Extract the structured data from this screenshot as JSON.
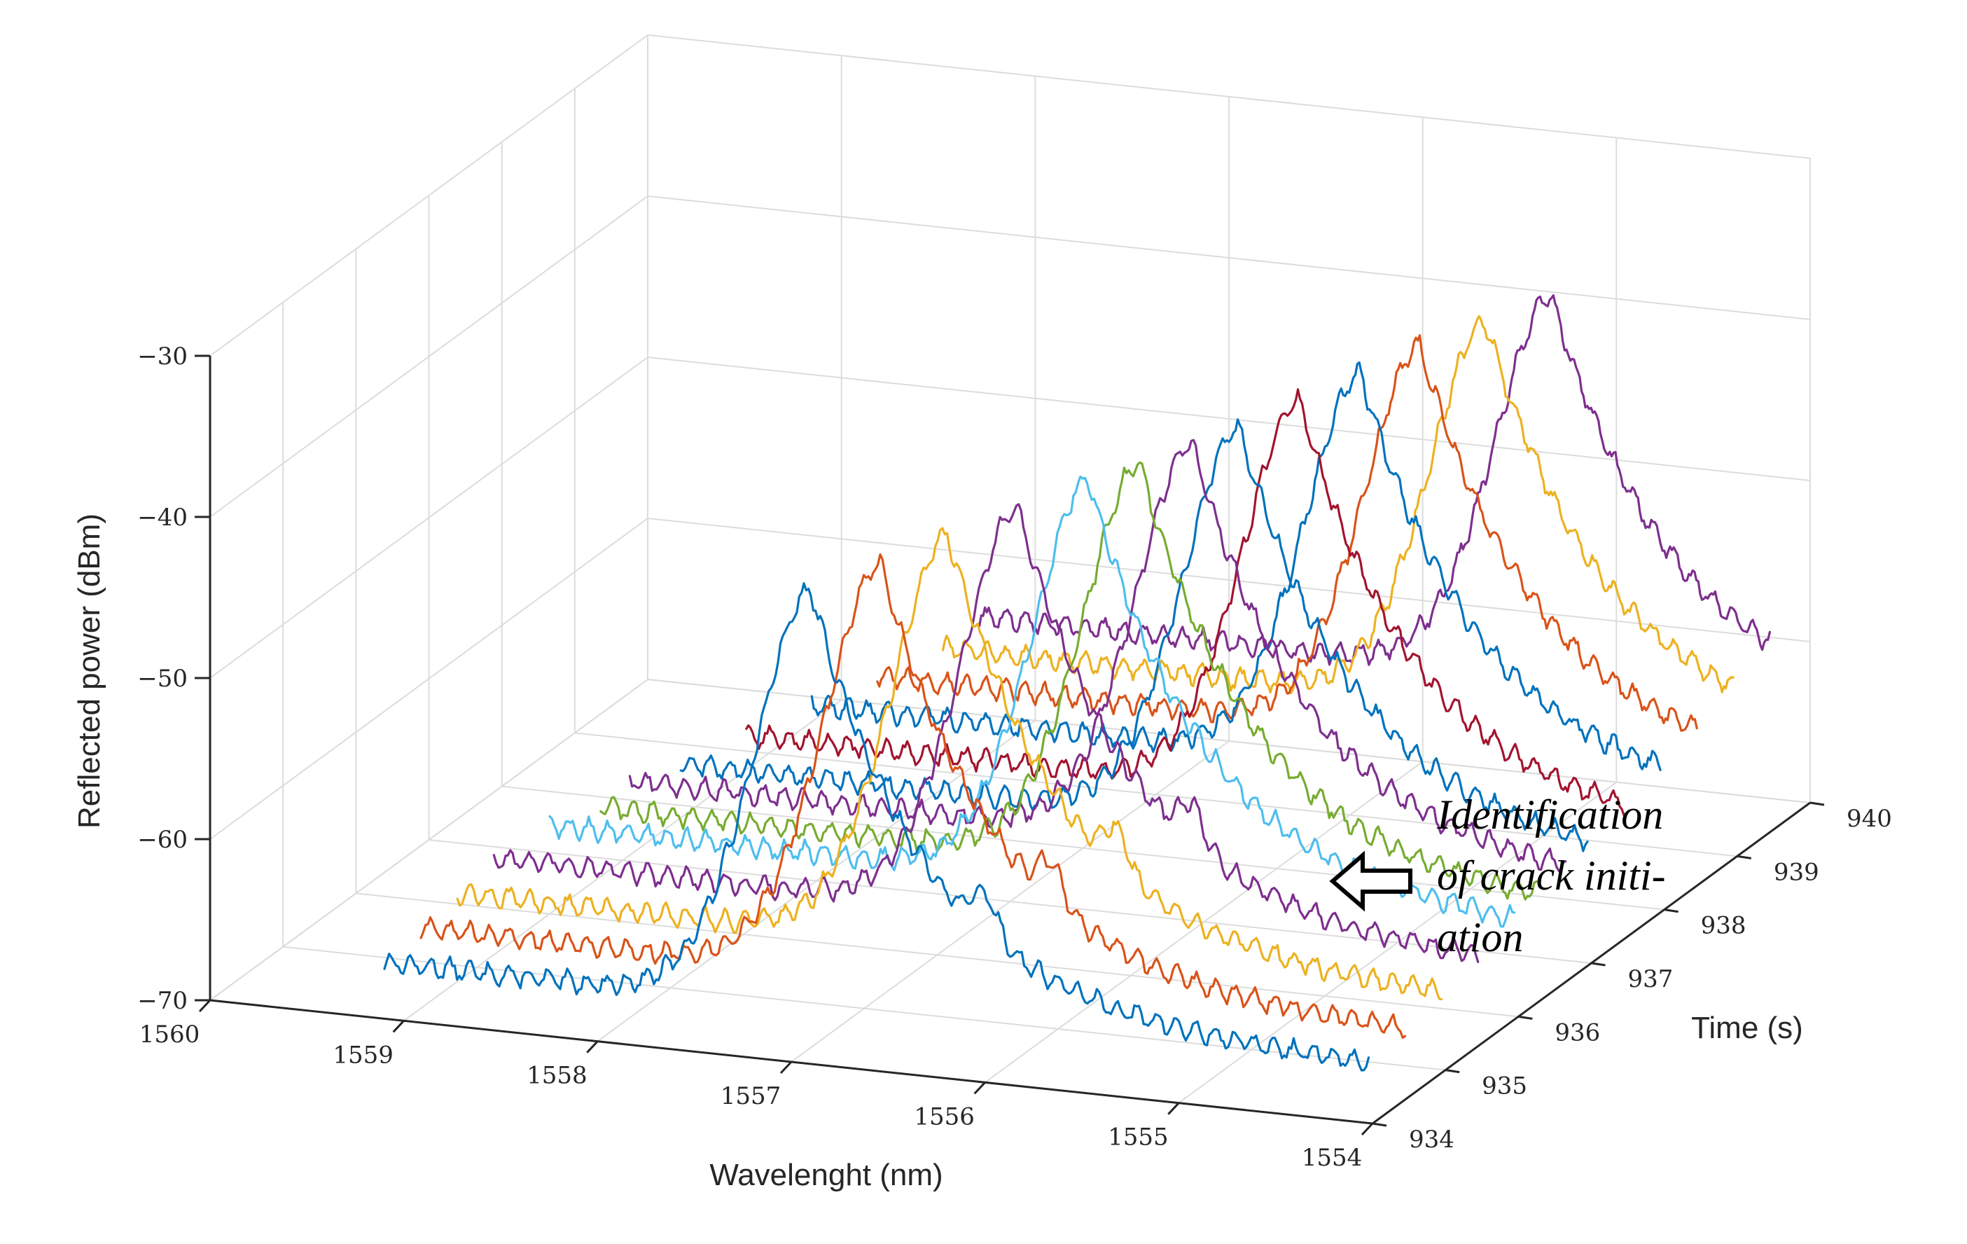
{
  "chart_data": {
    "type": "line",
    "view": "3d-waterfall",
    "title": "",
    "xlabel": "Wavelenght (nm)",
    "ylabel": "Time (s)",
    "zlabel": "Reflected power (dBm)",
    "xlim": [
      1554,
      1560
    ],
    "xdir": "reverse",
    "ylim": [
      934,
      940
    ],
    "zlim": [
      -70,
      -30
    ],
    "xticks": [
      "1554",
      "1555",
      "1556",
      "1557",
      "1558",
      "1559",
      "1560"
    ],
    "yticks": [
      "934",
      "935",
      "936",
      "937",
      "938",
      "939",
      "940"
    ],
    "zticks": [
      "−70",
      "−60",
      "−50",
      "−40",
      "−30"
    ],
    "grid": true,
    "legend": "none",
    "annotation": {
      "lines": [
        "Identification",
        "of crack initi-",
        "ation"
      ],
      "arrow_target_time": 936.5
    },
    "series": [
      {
        "time": 934.0,
        "color": "#0072BD",
        "base_dbm": -66.5,
        "left_offset": 0.0,
        "peak_nm": 1556.9,
        "peak_dbm": -40.6,
        "right_floor_dbm": -66.4,
        "secondary_peak_nm": 1556.0
      },
      {
        "time": 934.5,
        "color": "#D95319",
        "base_dbm": -66.0,
        "left_offset": 0.0,
        "peak_nm": 1556.73,
        "peak_dbm": -40.3,
        "right_floor_dbm": -66.0,
        "secondary_peak_nm": 1555.85
      },
      {
        "time": 935.0,
        "color": "#EDB120",
        "base_dbm": -65.5,
        "left_offset": 0.0,
        "peak_nm": 1556.57,
        "peak_dbm": -40.0,
        "right_floor_dbm": -65.5,
        "secondary_peak_nm": 1555.7
      },
      {
        "time": 935.5,
        "color": "#7E2F8E",
        "base_dbm": -65.0,
        "left_offset": 0.0,
        "peak_nm": 1556.4,
        "peak_dbm": -39.8,
        "right_floor_dbm": -65.0,
        "secondary_peak_nm": 1555.5
      },
      {
        "time": 936.0,
        "color": "#4DBEEE",
        "base_dbm": -64.5,
        "left_offset": 0.1,
        "peak_nm": 1556.22,
        "peak_dbm": -39.5,
        "right_floor_dbm": -64.5
      },
      {
        "time": 936.3,
        "color": "#77AC30",
        "base_dbm": -64.2,
        "left_offset": 0.25,
        "peak_nm": 1556.07,
        "peak_dbm": -39.3,
        "right_floor_dbm": -64.2
      },
      {
        "time": 936.7,
        "color": "#7E2F8E",
        "base_dbm": -63.9,
        "left_offset": 0.25,
        "peak_nm": 1555.95,
        "peak_dbm": -39.2,
        "right_floor_dbm": -63.9
      },
      {
        "time": 937.0,
        "color": "#0072BD",
        "base_dbm": -63.6,
        "left_offset": 0.4,
        "peak_nm": 1555.82,
        "peak_dbm": -39.0,
        "right_floor_dbm": -63.6
      },
      {
        "time": 937.5,
        "color": "#A2142F",
        "base_dbm": -63.3,
        "left_offset": 0.55,
        "peak_nm": 1555.7,
        "peak_dbm": -38.8,
        "right_floor_dbm": -63.3
      },
      {
        "time": 938.0,
        "color": "#0072BD",
        "base_dbm": -62.9,
        "left_offset": 0.7,
        "peak_nm": 1555.57,
        "peak_dbm": -38.7,
        "right_floor_dbm": -62.9
      },
      {
        "time": 938.5,
        "color": "#D95319",
        "base_dbm": -62.6,
        "left_offset": 0.85,
        "peak_nm": 1555.45,
        "peak_dbm": -38.5,
        "right_floor_dbm": -62.6
      },
      {
        "time": 939.0,
        "color": "#EDB120",
        "base_dbm": -62.3,
        "left_offset": 1.0,
        "peak_nm": 1555.3,
        "peak_dbm": -38.4,
        "right_floor_dbm": -62.3
      },
      {
        "time": 939.5,
        "color": "#7E2F8E",
        "base_dbm": -62.0,
        "left_offset": 1.0,
        "peak_nm": 1555.15,
        "peak_dbm": -38.3,
        "right_floor_dbm": -62.0
      }
    ]
  }
}
